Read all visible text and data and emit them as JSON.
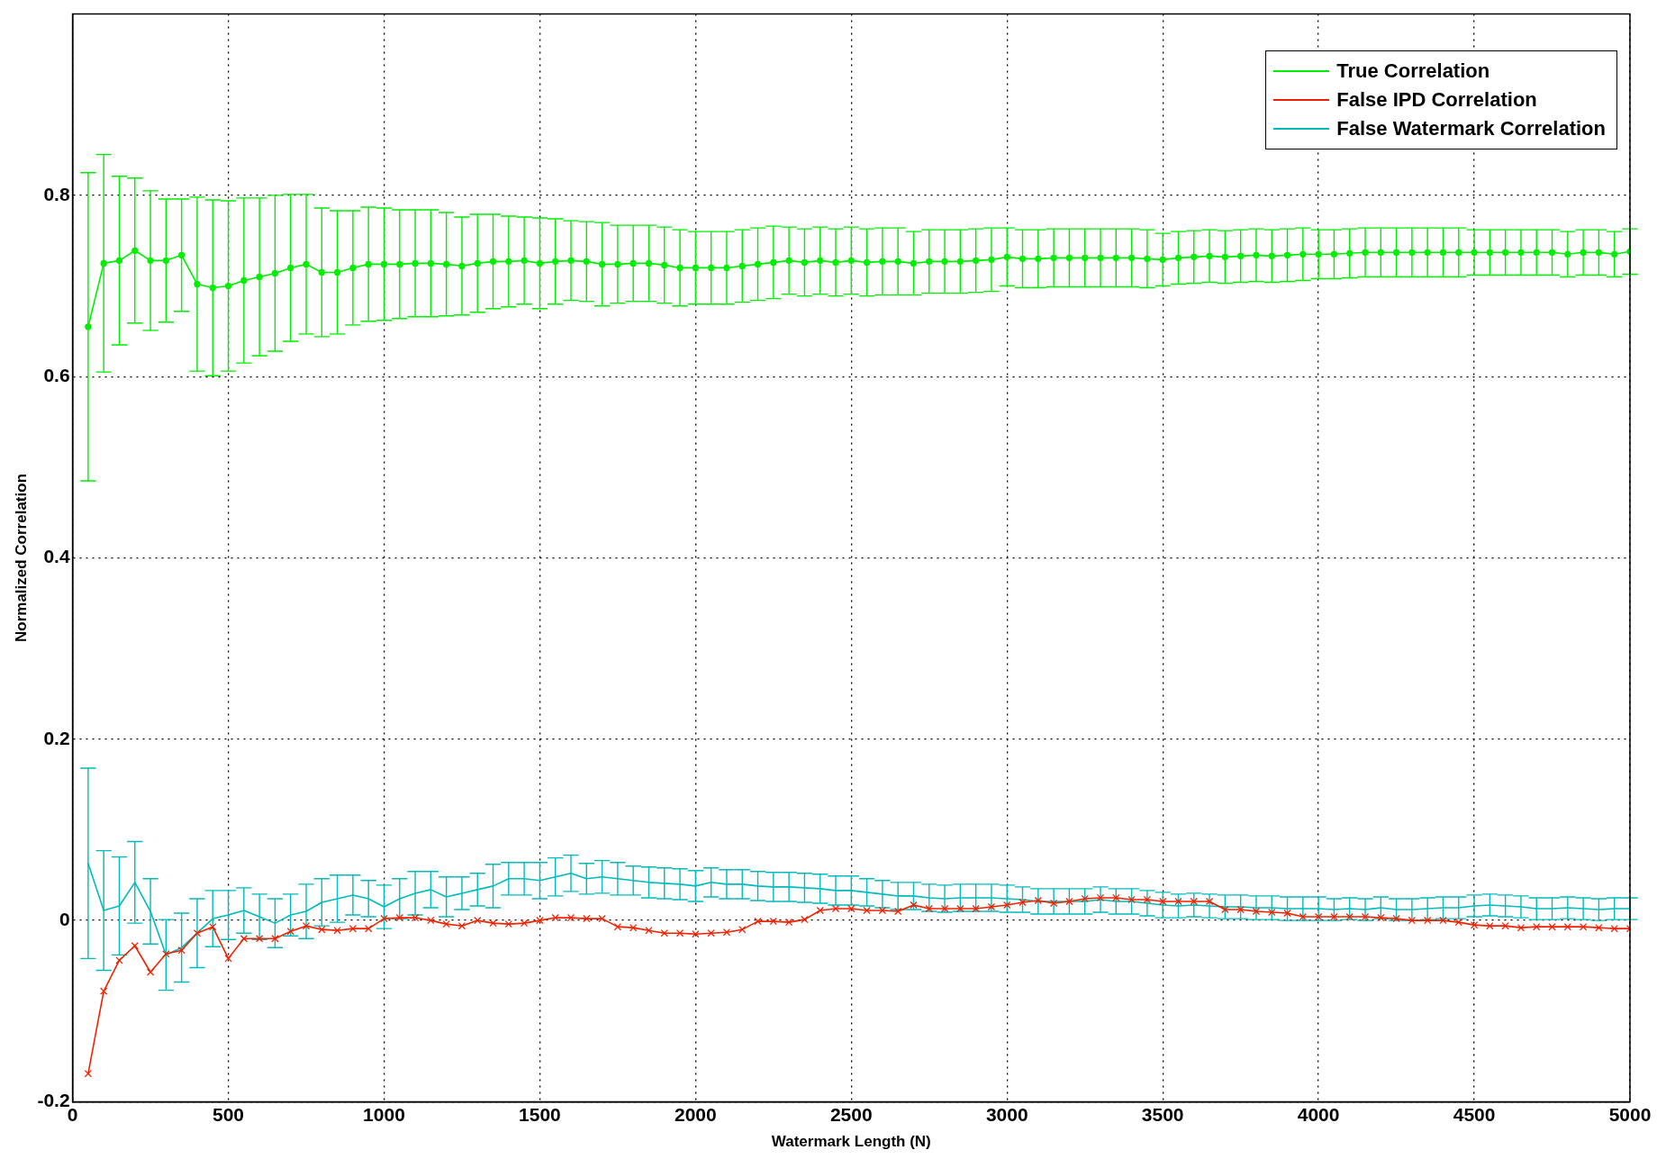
{
  "chart_data": {
    "type": "line",
    "xlabel": "Watermark Length (N)",
    "ylabel": "Normalized Correlation",
    "x": [
      50,
      100,
      150,
      200,
      250,
      300,
      350,
      400,
      450,
      500,
      550,
      600,
      650,
      700,
      750,
      800,
      850,
      900,
      950,
      1000,
      1050,
      1100,
      1150,
      1200,
      1250,
      1300,
      1350,
      1400,
      1450,
      1500,
      1550,
      1600,
      1650,
      1700,
      1750,
      1800,
      1850,
      1900,
      1950,
      2000,
      2050,
      2100,
      2150,
      2200,
      2250,
      2300,
      2350,
      2400,
      2450,
      2500,
      2550,
      2600,
      2650,
      2700,
      2750,
      2800,
      2850,
      2900,
      2950,
      3000,
      3050,
      3100,
      3150,
      3200,
      3250,
      3300,
      3350,
      3400,
      3450,
      3500,
      3550,
      3600,
      3650,
      3700,
      3750,
      3800,
      3850,
      3900,
      3950,
      4000,
      4050,
      4100,
      4150,
      4200,
      4250,
      4300,
      4350,
      4400,
      4450,
      4500,
      4550,
      4600,
      4650,
      4700,
      4750,
      4800,
      4850,
      4900,
      4950,
      5000
    ],
    "xlim": [
      0,
      5000
    ],
    "xticks": [
      0,
      500,
      1000,
      1500,
      2000,
      2500,
      3000,
      3500,
      4000,
      4500,
      5000
    ],
    "ylim": [
      -0.2,
      1
    ],
    "yticks": [
      -0.2,
      0,
      0.2,
      0.4,
      0.6,
      0.8
    ],
    "grid": true,
    "legend": "top right",
    "series": [
      {
        "name": "True Correlation",
        "color": "#00ee00",
        "marker": "circle",
        "values": [
          0.655,
          0.725,
          0.728,
          0.739,
          0.728,
          0.728,
          0.734,
          0.702,
          0.698,
          0.7,
          0.706,
          0.71,
          0.714,
          0.72,
          0.724,
          0.715,
          0.715,
          0.72,
          0.724,
          0.724,
          0.724,
          0.725,
          0.725,
          0.724,
          0.722,
          0.725,
          0.727,
          0.727,
          0.728,
          0.725,
          0.727,
          0.728,
          0.727,
          0.724,
          0.724,
          0.725,
          0.725,
          0.723,
          0.72,
          0.72,
          0.72,
          0.72,
          0.722,
          0.724,
          0.726,
          0.728,
          0.726,
          0.728,
          0.726,
          0.728,
          0.726,
          0.727,
          0.727,
          0.725,
          0.727,
          0.727,
          0.727,
          0.728,
          0.729,
          0.732,
          0.73,
          0.73,
          0.731,
          0.731,
          0.731,
          0.731,
          0.731,
          0.731,
          0.73,
          0.729,
          0.731,
          0.732,
          0.733,
          0.732,
          0.733,
          0.734,
          0.733,
          0.734,
          0.735,
          0.735,
          0.735,
          0.736,
          0.737,
          0.737,
          0.737,
          0.737,
          0.737,
          0.737,
          0.737,
          0.737,
          0.737,
          0.737,
          0.737,
          0.737,
          0.737,
          0.735,
          0.737,
          0.737,
          0.735,
          0.738
        ],
        "errors": [
          0.17,
          0.12,
          0.093,
          0.08,
          0.077,
          0.068,
          0.062,
          0.096,
          0.097,
          0.094,
          0.091,
          0.087,
          0.086,
          0.081,
          0.077,
          0.071,
          0.068,
          0.063,
          0.063,
          0.062,
          0.06,
          0.059,
          0.059,
          0.057,
          0.054,
          0.054,
          0.052,
          0.05,
          0.048,
          0.05,
          0.047,
          0.044,
          0.044,
          0.046,
          0.043,
          0.042,
          0.042,
          0.042,
          0.042,
          0.04,
          0.04,
          0.04,
          0.04,
          0.04,
          0.04,
          0.037,
          0.037,
          0.037,
          0.037,
          0.037,
          0.037,
          0.037,
          0.037,
          0.035,
          0.035,
          0.035,
          0.035,
          0.035,
          0.035,
          0.032,
          0.032,
          0.032,
          0.032,
          0.032,
          0.032,
          0.032,
          0.032,
          0.032,
          0.032,
          0.029,
          0.029,
          0.029,
          0.029,
          0.029,
          0.029,
          0.029,
          0.029,
          0.029,
          0.029,
          0.027,
          0.027,
          0.027,
          0.027,
          0.027,
          0.027,
          0.027,
          0.027,
          0.027,
          0.027,
          0.025,
          0.025,
          0.025,
          0.025,
          0.025,
          0.025,
          0.025,
          0.025,
          0.025,
          0.025,
          0.025
        ]
      },
      {
        "name": "False IPD Correlation",
        "color": "#ee2200",
        "marker": "cross",
        "values": [
          -0.169,
          -0.078,
          -0.044,
          -0.028,
          -0.057,
          -0.037,
          -0.033,
          -0.014,
          -0.007,
          -0.042,
          -0.02,
          -0.02,
          -0.02,
          -0.012,
          -0.006,
          -0.01,
          -0.011,
          -0.009,
          -0.009,
          0.002,
          0.003,
          0.003,
          0,
          -0.004,
          -0.006,
          0,
          -0.003,
          -0.004,
          -0.003,
          0,
          0.003,
          0.003,
          0.002,
          0.002,
          -0.007,
          -0.008,
          -0.011,
          -0.014,
          -0.014,
          -0.015,
          -0.014,
          -0.013,
          -0.01,
          -0.001,
          -0.001,
          -0.002,
          0.001,
          0.011,
          0.013,
          0.013,
          0.011,
          0.011,
          0.01,
          0.017,
          0.013,
          0.013,
          0.013,
          0.013,
          0.015,
          0.017,
          0.02,
          0.022,
          0.019,
          0.021,
          0.024,
          0.025,
          0.025,
          0.023,
          0.023,
          0.021,
          0.021,
          0.021,
          0.021,
          0.012,
          0.012,
          0.01,
          0.009,
          0.008,
          0.004,
          0.004,
          0.004,
          0.004,
          0.004,
          0.003,
          0.002,
          0,
          0,
          0,
          -0.002,
          -0.005,
          -0.006,
          -0.006,
          -0.008,
          -0.007,
          -0.007,
          -0.007,
          -0.007,
          -0.008,
          -0.009,
          -0.009
        ]
      },
      {
        "name": "False Watermark Correlation",
        "color": "#00bbbb",
        "marker": "none",
        "values": [
          0.063,
          0.011,
          0.016,
          0.042,
          0.01,
          -0.038,
          -0.03,
          -0.014,
          0.002,
          0.006,
          0.011,
          0.004,
          -0.003,
          0.006,
          0.01,
          0.02,
          0.024,
          0.028,
          0.024,
          0.015,
          0.024,
          0.03,
          0.034,
          0.026,
          0.03,
          0.034,
          0.038,
          0.046,
          0.046,
          0.044,
          0.048,
          0.052,
          0.046,
          0.048,
          0.046,
          0.044,
          0.042,
          0.041,
          0.04,
          0.038,
          0.042,
          0.04,
          0.04,
          0.038,
          0.037,
          0.037,
          0.036,
          0.035,
          0.033,
          0.033,
          0.031,
          0.029,
          0.027,
          0.027,
          0.025,
          0.024,
          0.025,
          0.025,
          0.025,
          0.024,
          0.023,
          0.021,
          0.021,
          0.021,
          0.021,
          0.023,
          0.021,
          0.021,
          0.019,
          0.017,
          0.016,
          0.017,
          0.016,
          0.015,
          0.015,
          0.014,
          0.014,
          0.013,
          0.013,
          0.013,
          0.012,
          0.013,
          0.012,
          0.014,
          0.012,
          0.012,
          0.013,
          0.014,
          0.014,
          0.016,
          0.017,
          0.016,
          0.015,
          0.013,
          0.013,
          0.014,
          0.013,
          0.012,
          0.013,
          0.013
        ],
        "errors": [
          0.105,
          0.066,
          0.054,
          0.045,
          0.036,
          0.039,
          0.038,
          0.038,
          0.031,
          0.027,
          0.025,
          0.025,
          0.027,
          0.023,
          0.03,
          0.026,
          0.026,
          0.022,
          0.02,
          0.024,
          0.022,
          0.024,
          0.02,
          0.022,
          0.018,
          0.018,
          0.024,
          0.018,
          0.018,
          0.02,
          0.021,
          0.02,
          0.017,
          0.018,
          0.018,
          0.016,
          0.017,
          0.017,
          0.017,
          0.017,
          0.016,
          0.016,
          0.016,
          0.016,
          0.016,
          0.016,
          0.016,
          0.016,
          0.016,
          0.016,
          0.015,
          0.015,
          0.015,
          0.015,
          0.015,
          0.015,
          0.015,
          0.015,
          0.015,
          0.015,
          0.014,
          0.014,
          0.014,
          0.014,
          0.014,
          0.014,
          0.014,
          0.014,
          0.014,
          0.014,
          0.013,
          0.013,
          0.013,
          0.013,
          0.013,
          0.013,
          0.013,
          0.013,
          0.013,
          0.013,
          0.012,
          0.012,
          0.012,
          0.012,
          0.012,
          0.012,
          0.012,
          0.012,
          0.012,
          0.012,
          0.012,
          0.012,
          0.012,
          0.012,
          0.012,
          0.012,
          0.012,
          0.012,
          0.012,
          0.012
        ]
      }
    ]
  }
}
